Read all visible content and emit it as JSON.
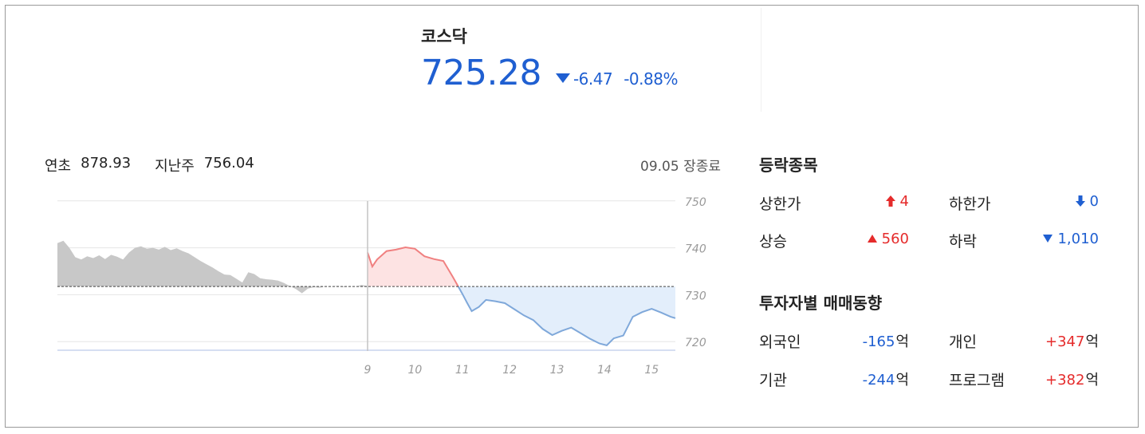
{
  "header": {
    "index_name": "코스닥",
    "price": "725.28",
    "change": "-6.47",
    "change_rate": "-0.88%"
  },
  "stats": {
    "ytd_label": "연초",
    "ytd_value": "878.93",
    "lastweek_label": "지난주",
    "lastweek_value": "756.04",
    "status": "09.05 장종료"
  },
  "chart_data": {
    "type": "area",
    "y_ticks": [
      "750",
      "740",
      "730",
      "720"
    ],
    "x_ticks": [
      "9",
      "10",
      "11",
      "12",
      "13",
      "14",
      "15"
    ],
    "ylim": [
      718,
      752
    ],
    "baseline": 731.75,
    "grid": true,
    "previous_series": [
      741,
      741.5,
      740,
      738,
      737.5,
      738.2,
      737.8,
      738.4,
      737.6,
      738.5,
      738.1,
      737.5,
      739,
      740,
      740.3,
      739.8,
      740,
      739.6,
      740.2,
      739.5,
      739.9,
      739.3,
      738.8,
      738,
      737.2,
      736.5,
      735.8,
      735,
      734.3,
      734.2,
      733.4,
      732.6,
      734.8,
      734.4,
      733.5,
      733.3,
      733.2,
      733,
      732.5,
      731.8,
      731.2,
      730.3,
      731.3,
      731.6,
      731.5,
      731.8,
      731.7,
      731.9,
      731.6,
      731.8,
      731.7,
      732.1,
      731.8
    ],
    "current_series": [
      [
        9.0,
        739.0
      ],
      [
        9.1,
        736.0
      ],
      [
        9.2,
        737.5
      ],
      [
        9.4,
        739.3
      ],
      [
        9.6,
        739.6
      ],
      [
        9.8,
        740.1
      ],
      [
        10.0,
        739.8
      ],
      [
        10.2,
        738.2
      ],
      [
        10.4,
        737.6
      ],
      [
        10.6,
        737.2
      ],
      [
        10.8,
        733.8
      ],
      [
        11.0,
        730.2
      ],
      [
        11.1,
        728.3
      ],
      [
        11.2,
        726.5
      ],
      [
        11.35,
        727.4
      ],
      [
        11.5,
        728.9
      ],
      [
        11.7,
        728.6
      ],
      [
        11.9,
        728.2
      ],
      [
        12.1,
        726.9
      ],
      [
        12.3,
        725.6
      ],
      [
        12.5,
        724.6
      ],
      [
        12.7,
        722.7
      ],
      [
        12.9,
        721.4
      ],
      [
        13.1,
        722.3
      ],
      [
        13.3,
        723.0
      ],
      [
        13.5,
        721.8
      ],
      [
        13.7,
        720.6
      ],
      [
        13.9,
        719.6
      ],
      [
        14.05,
        719.2
      ],
      [
        14.2,
        720.7
      ],
      [
        14.4,
        721.3
      ],
      [
        14.6,
        725.3
      ],
      [
        14.8,
        726.3
      ],
      [
        15.0,
        727.0
      ],
      [
        15.2,
        726.2
      ],
      [
        15.4,
        725.3
      ],
      [
        15.5,
        725.0
      ]
    ]
  },
  "market_breadth": {
    "title": "등락종목",
    "upper_limit_label": "상한가",
    "upper_limit_value": "4",
    "lower_limit_label": "하한가",
    "lower_limit_value": "0",
    "rise_label": "상승",
    "rise_value": "560",
    "fall_label": "하락",
    "fall_value": "1,010"
  },
  "investors": {
    "title": "투자자별 매매동향",
    "unit": "억",
    "foreign_label": "외국인",
    "foreign_value": "-165",
    "individual_label": "개인",
    "individual_value": "+347",
    "institution_label": "기관",
    "institution_value": "-244",
    "program_label": "프로그램",
    "program_value": "+382"
  },
  "colors": {
    "up": "#e52b2b",
    "down": "#1f5fd1",
    "up_fill": "#fde3e3",
    "down_fill": "#e3eefb",
    "previous_fill": "#c8c8c8"
  }
}
